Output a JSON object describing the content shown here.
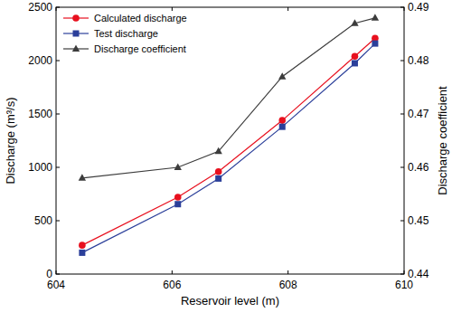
{
  "chart_data": {
    "type": "line",
    "x_label": "Reservoir level (m)",
    "y_label": "Discharge (m³/s)",
    "y2_label": "Discharge coefficient",
    "x": [
      604.45,
      606.1,
      606.8,
      607.9,
      609.15,
      609.5
    ],
    "series": [
      {
        "name": "Calculated discharge",
        "color": "#e8101e",
        "marker": "circle",
        "line_style": "solid",
        "values": [
          270,
          720,
          960,
          1440,
          2040,
          2210
        ]
      },
      {
        "name": "Test discharge",
        "color": "#2b3f9a",
        "marker": "square",
        "line_style": "solid",
        "values": [
          200,
          655,
          895,
          1380,
          1975,
          2160
        ]
      },
      {
        "name": "Discharge coefficient",
        "color": "#3c3c3c",
        "marker": "triangle",
        "line_style": "solid",
        "axis": "y2",
        "values": [
          0.458,
          0.46,
          0.463,
          0.477,
          0.487,
          0.488
        ]
      }
    ],
    "xlim": [
      604,
      610
    ],
    "xticks": [
      604,
      606,
      608,
      610
    ],
    "ylim": [
      0,
      2500
    ],
    "yticks": [
      0,
      500,
      1000,
      1500,
      2000,
      2500
    ],
    "y2lim": [
      0.44,
      0.49
    ],
    "y2ticks": [
      0.44,
      0.45,
      0.46,
      0.47,
      0.48,
      0.49
    ],
    "grid": false,
    "legend": "upper left"
  }
}
